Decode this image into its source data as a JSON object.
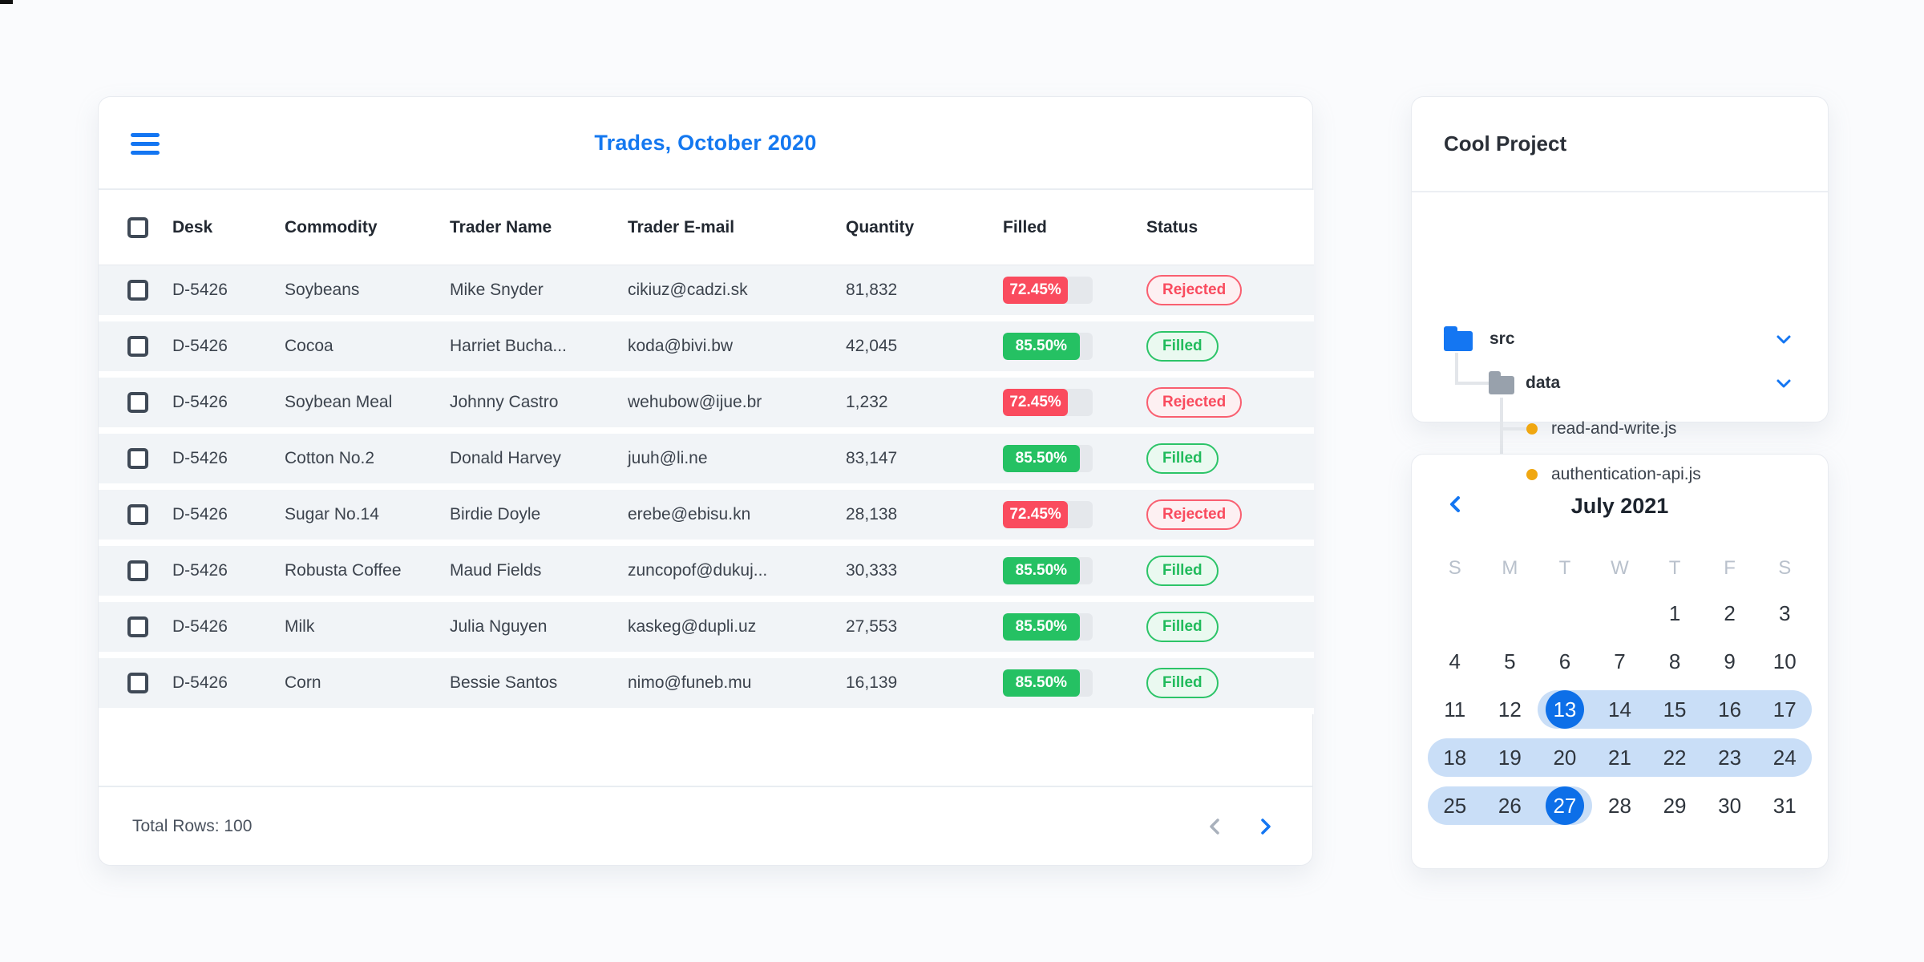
{
  "trades": {
    "title": "Trades, October 2020",
    "menu_icon": "hamburger-menu",
    "columns": [
      "Desk",
      "Commodity",
      "Trader Name",
      "Trader E-mail",
      "Quantity",
      "Filled",
      "Status"
    ],
    "rows": [
      {
        "desk": "D-5426",
        "commodity": "Soybeans",
        "trader": "Mike Snyder",
        "email": "cikiuz@cadzi.sk",
        "quantity": "81,832",
        "filled_label": "72.45%",
        "filled_value": 72.45,
        "status": "Rejected"
      },
      {
        "desk": "D-5426",
        "commodity": "Cocoa",
        "trader": "Harriet Bucha...",
        "email": "koda@bivi.bw",
        "quantity": "42,045",
        "filled_label": "85.50%",
        "filled_value": 85.5,
        "status": "Filled"
      },
      {
        "desk": "D-5426",
        "commodity": "Soybean Meal",
        "trader": "Johnny Castro",
        "email": "wehubow@ijue.br",
        "quantity": "1,232",
        "filled_label": "72.45%",
        "filled_value": 72.45,
        "status": "Rejected"
      },
      {
        "desk": "D-5426",
        "commodity": "Cotton No.2",
        "trader": "Donald Harvey",
        "email": "juuh@li.ne",
        "quantity": "83,147",
        "filled_label": "85.50%",
        "filled_value": 85.5,
        "status": "Filled"
      },
      {
        "desk": "D-5426",
        "commodity": "Sugar No.14",
        "trader": "Birdie Doyle",
        "email": "erebe@ebisu.kn",
        "quantity": "28,138",
        "filled_label": "72.45%",
        "filled_value": 72.45,
        "status": "Rejected"
      },
      {
        "desk": "D-5426",
        "commodity": "Robusta Coffee",
        "trader": "Maud Fields",
        "email": "zuncopof@dukuj...",
        "quantity": "30,333",
        "filled_label": "85.50%",
        "filled_value": 85.5,
        "status": "Filled"
      },
      {
        "desk": "D-5426",
        "commodity": "Milk",
        "trader": "Julia Nguyen",
        "email": "kaskeg@dupli.uz",
        "quantity": "27,553",
        "filled_label": "85.50%",
        "filled_value": 85.5,
        "status": "Filled"
      },
      {
        "desk": "D-5426",
        "commodity": "Corn",
        "trader": "Bessie Santos",
        "email": "nimo@funeb.mu",
        "quantity": "16,139",
        "filled_label": "85.50%",
        "filled_value": 85.5,
        "status": "Filled"
      }
    ],
    "footer": {
      "total_label": "Total Rows: 100",
      "prev_icon": "chevron-left",
      "next_icon": "chevron-right"
    }
  },
  "project": {
    "title": "Cool Project",
    "tree": {
      "root_folder": {
        "label": "src",
        "icon": "folder-blue",
        "expand_icon": "chevron-down"
      },
      "sub_folder": {
        "label": "data",
        "icon": "folder-gray",
        "expand_icon": "chevron-down"
      },
      "files": [
        {
          "label": "read-and-write.js",
          "icon": "bullet-dot-orange"
        },
        {
          "label": "authentication-api.js",
          "icon": "bullet-dot-orange"
        }
      ]
    }
  },
  "calendar": {
    "title": "July 2021",
    "prev_icon": "chevron-left",
    "day_headers": [
      "S",
      "M",
      "T",
      "W",
      "T",
      "F",
      "S"
    ],
    "weeks": [
      [
        "",
        "",
        "",
        "",
        "1",
        "2",
        "3"
      ],
      [
        "4",
        "5",
        "6",
        "7",
        "8",
        "9",
        "10"
      ],
      [
        "11",
        "12",
        "13",
        "14",
        "15",
        "16",
        "17"
      ],
      [
        "18",
        "19",
        "20",
        "21",
        "22",
        "23",
        "24"
      ],
      [
        "25",
        "26",
        "27",
        "28",
        "29",
        "30",
        "31"
      ]
    ],
    "range_start": 13,
    "range_end": 27,
    "selected_dates": [
      13,
      27
    ]
  },
  "colors": {
    "accent_blue": "#1476f2",
    "selected_blue": "#0d6fe8",
    "range_light_blue": "#c9def7",
    "red": "#fa4b5e",
    "green": "#25c163",
    "row_background": "#f1f4f7",
    "progress_track": "#e5e8ec",
    "file_dot_orange": "#f0a711"
  }
}
